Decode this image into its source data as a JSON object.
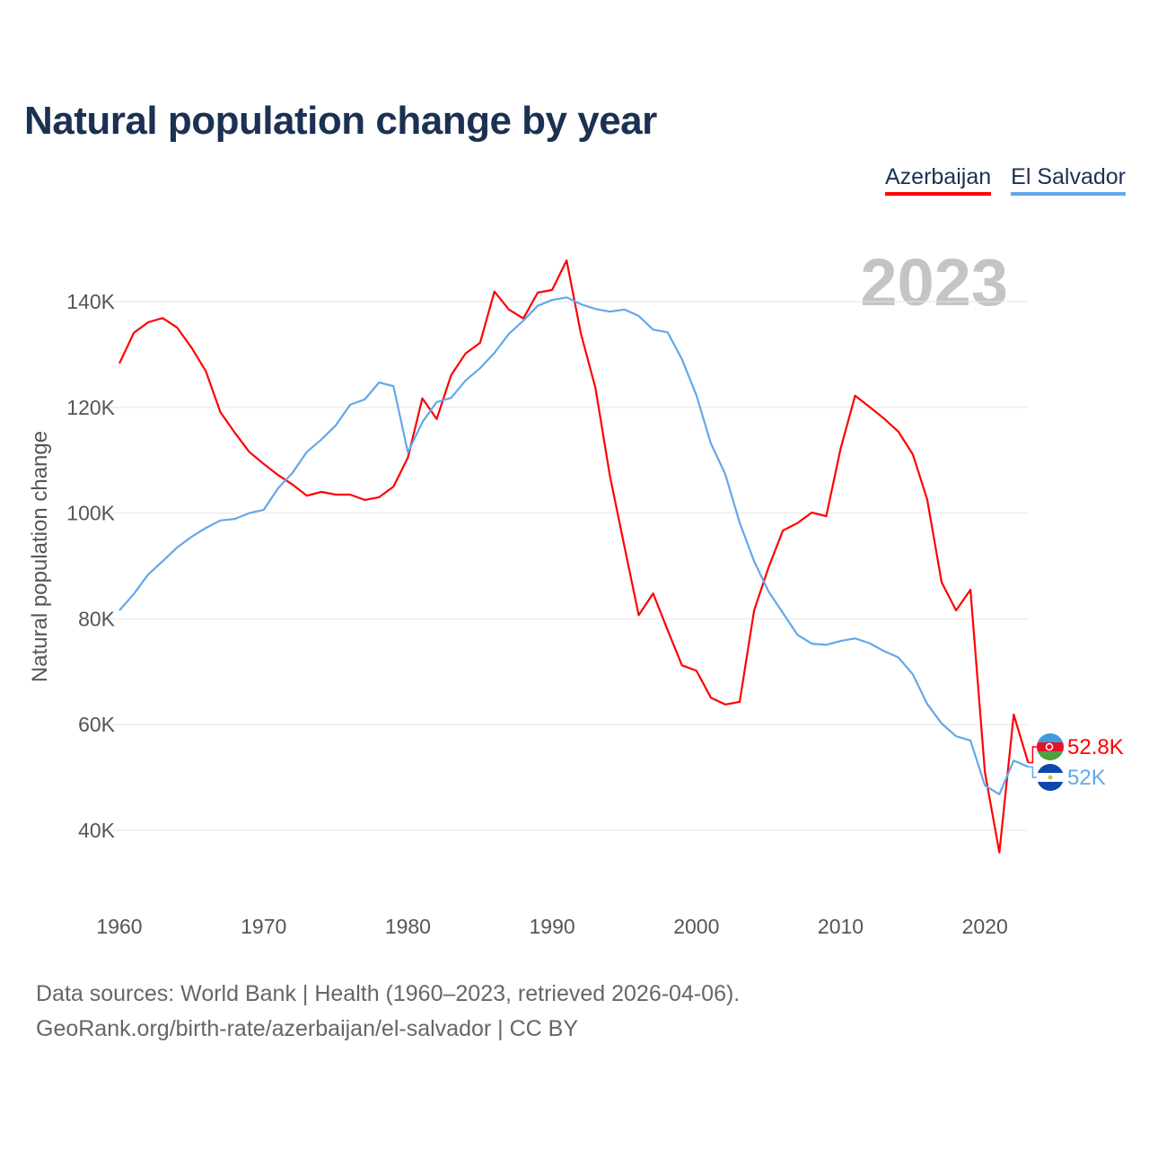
{
  "title": "Natural population change by year",
  "watermark_year": "2023",
  "footer": {
    "line1": "Data sources: World Bank | Health (1960–2023, retrieved 2026-04-06).",
    "line2": "GeoRank.org/birth-rate/azerbaijan/el-salvador | CC BY"
  },
  "chart_data": {
    "type": "line",
    "title": "Natural population change by year",
    "xlabel": "",
    "ylabel": "Natural population change",
    "xlim": [
      1960,
      2023
    ],
    "ylim": [
      28000,
      152000
    ],
    "grid": true,
    "legend_position": "top-right",
    "x_ticks": [
      1960,
      1970,
      1980,
      1990,
      2000,
      2010,
      2020
    ],
    "x_tick_labels": [
      "1960",
      "1970",
      "1980",
      "1990",
      "2000",
      "2010",
      "2020"
    ],
    "y_ticks": [
      40000,
      60000,
      80000,
      100000,
      120000,
      140000
    ],
    "y_tick_labels": [
      "40K",
      "60K",
      "80K",
      "100K",
      "120K",
      "140K"
    ],
    "x": [
      1960,
      1961,
      1962,
      1963,
      1964,
      1965,
      1966,
      1967,
      1968,
      1969,
      1970,
      1971,
      1972,
      1973,
      1974,
      1975,
      1976,
      1977,
      1978,
      1979,
      1980,
      1981,
      1982,
      1983,
      1984,
      1985,
      1986,
      1987,
      1988,
      1989,
      1990,
      1991,
      1992,
      1993,
      1994,
      1995,
      1996,
      1997,
      1998,
      1999,
      2000,
      2001,
      2002,
      2003,
      2004,
      2005,
      2006,
      2007,
      2008,
      2009,
      2010,
      2011,
      2012,
      2013,
      2014,
      2015,
      2016,
      2017,
      2018,
      2019,
      2020,
      2021,
      2022,
      2023
    ],
    "series": [
      {
        "name": "Azerbaijan",
        "color": "#ff0000",
        "end_label": "52.8K",
        "values": [
          128300,
          134100,
          136100,
          136900,
          135100,
          131300,
          126800,
          119100,
          115200,
          111600,
          109300,
          107200,
          105400,
          103300,
          104000,
          103500,
          103500,
          102500,
          103000,
          105000,
          110500,
          121700,
          117800,
          126100,
          130200,
          132200,
          141900,
          138500,
          136800,
          141700,
          142200,
          147800,
          133900,
          123700,
          107100,
          93800,
          80700,
          84800,
          77900,
          71200,
          70200,
          65100,
          63800,
          64300,
          81600,
          89700,
          96700,
          98100,
          100100,
          99400,
          112200,
          122200,
          120100,
          117900,
          115400,
          111100,
          102600,
          86900,
          81600,
          85500,
          51000,
          35800,
          61900,
          52800
        ]
      },
      {
        "name": "El Salvador",
        "color": "#62a8ea",
        "end_label": "52K",
        "values": [
          81600,
          84700,
          88400,
          90900,
          93500,
          95500,
          97200,
          98600,
          98900,
          100000,
          100600,
          104700,
          107600,
          111600,
          113900,
          116600,
          120500,
          121500,
          124700,
          124000,
          111500,
          117200,
          121000,
          121800,
          125100,
          127400,
          130300,
          133900,
          136400,
          139200,
          140300,
          140800,
          139500,
          138600,
          138100,
          138500,
          137300,
          134700,
          134200,
          129100,
          122300,
          113200,
          107400,
          98200,
          90900,
          85200,
          81100,
          77000,
          75300,
          75100,
          75800,
          76300,
          75400,
          73900,
          72700,
          69500,
          63900,
          60200,
          57800,
          57000,
          48500,
          46800,
          53200,
          52000
        ]
      }
    ]
  }
}
